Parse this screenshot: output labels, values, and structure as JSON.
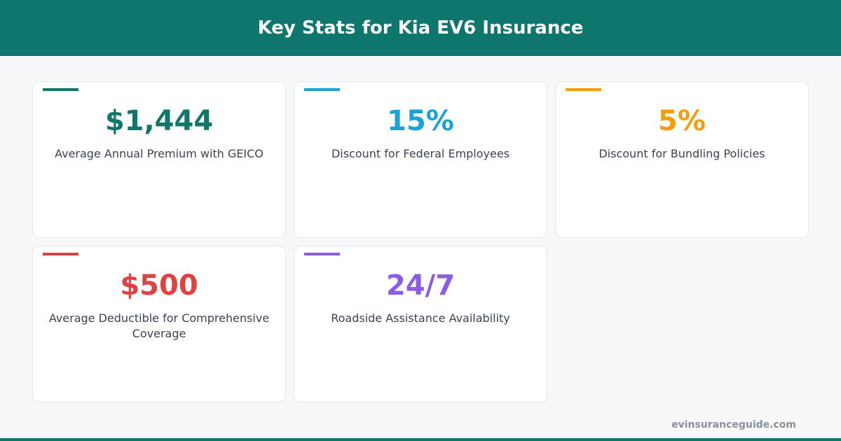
{
  "header": {
    "title": "Key Stats for Kia EV6 Insurance"
  },
  "cards": [
    {
      "value": "$1,444",
      "label": "Average Annual Premium with GEICO",
      "color": "#12776b"
    },
    {
      "value": "15%",
      "label": "Discount for Federal Employees",
      "color": "#1ba3d8"
    },
    {
      "value": "5%",
      "label": "Discount for Bundling Policies",
      "color": "#f29d0c"
    },
    {
      "value": "$500",
      "label": "Average Deductible for Comprehensive Coverage",
      "color": "#e0403f"
    },
    {
      "value": "24/7",
      "label": "Roadside Assistance Availability",
      "color": "#8b5ce6"
    }
  ],
  "footer": {
    "text": "evinsuranceguide.com"
  }
}
